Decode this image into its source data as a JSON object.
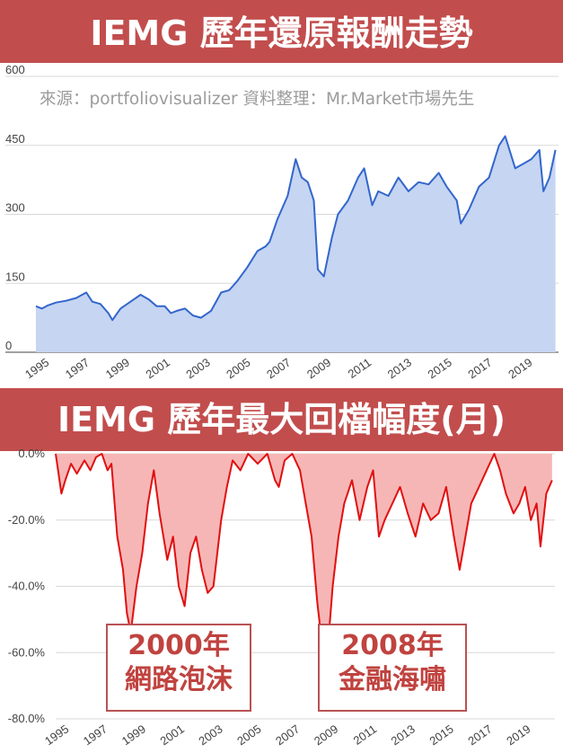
{
  "charts": {
    "returns": {
      "title": "IEMG 歷年還原報酬走勢",
      "source": "來源：portfoliovisualizer 資料整理：Mr.Market市場先生",
      "y_ticks": [
        "600",
        "450",
        "300",
        "150",
        "0"
      ],
      "x_ticks": [
        "1995",
        "1997",
        "1999",
        "2001",
        "2003",
        "2005",
        "2007",
        "2009",
        "2011",
        "2013",
        "2015",
        "2017",
        "2019"
      ]
    },
    "drawdown": {
      "title": "IEMG 歷年最大回檔幅度(月)",
      "y_ticks": [
        "0.0%",
        "-20.0%",
        "-40.0%",
        "-60.0%",
        "-80.0%"
      ],
      "x_ticks": [
        "1995",
        "1997",
        "1999",
        "2001",
        "2003",
        "2005",
        "2007",
        "2009",
        "2011",
        "2013",
        "2015",
        "2017",
        "2019"
      ],
      "annotations": [
        {
          "year": "2000年",
          "label": "網路泡沫"
        },
        {
          "year": "2008年",
          "label": "金融海嘯"
        }
      ]
    }
  },
  "chart_data": [
    {
      "type": "area",
      "title": "IEMG 歷年還原報酬走勢",
      "ylim": [
        0,
        600
      ],
      "line_color": "#3366cc",
      "fill_color": "#c5d5f2",
      "x": [
        1995.0,
        1995.3,
        1995.6,
        1996.0,
        1996.5,
        1997.0,
        1997.5,
        1997.8,
        1998.2,
        1998.6,
        1998.8,
        1999.2,
        1999.7,
        2000.2,
        2000.6,
        2001.0,
        2001.4,
        2001.7,
        2002.0,
        2002.4,
        2002.8,
        2003.2,
        2003.7,
        2004.2,
        2004.6,
        2005.0,
        2005.5,
        2006.0,
        2006.4,
        2006.6,
        2007.0,
        2007.5,
        2007.9,
        2008.2,
        2008.5,
        2008.8,
        2009.0,
        2009.3,
        2009.7,
        2010.0,
        2010.5,
        2011.0,
        2011.3,
        2011.7,
        2012.0,
        2012.5,
        2013.0,
        2013.5,
        2014.0,
        2014.5,
        2015.0,
        2015.4,
        2015.9,
        2016.1,
        2016.5,
        2017.0,
        2017.5,
        2018.0,
        2018.3,
        2018.8,
        2019.2,
        2019.6,
        2020.0,
        2020.2,
        2020.5,
        2020.8
      ],
      "y": [
        100,
        95,
        102,
        108,
        112,
        118,
        130,
        110,
        105,
        85,
        70,
        95,
        110,
        125,
        115,
        100,
        100,
        85,
        90,
        95,
        80,
        75,
        90,
        130,
        135,
        155,
        185,
        220,
        230,
        240,
        290,
        340,
        420,
        380,
        370,
        330,
        180,
        165,
        250,
        300,
        330,
        380,
        400,
        320,
        350,
        340,
        380,
        350,
        370,
        365,
        390,
        360,
        330,
        280,
        310,
        360,
        380,
        450,
        470,
        400,
        410,
        420,
        440,
        350,
        380,
        440
      ]
    },
    {
      "type": "area",
      "title": "IEMG 歷年最大回檔幅度(月)",
      "ylim": [
        -80,
        0
      ],
      "line_color": "#e01010",
      "fill_color": "#f7b6b6",
      "x": [
        1995.0,
        1995.3,
        1995.5,
        1995.8,
        1996.1,
        1996.5,
        1996.8,
        1997.1,
        1997.4,
        1997.7,
        1997.9,
        1998.2,
        1998.5,
        1998.7,
        1998.9,
        1999.2,
        1999.5,
        1999.8,
        2000.1,
        2000.4,
        2000.8,
        2001.1,
        2001.4,
        2001.7,
        2002.0,
        2002.3,
        2002.6,
        2002.9,
        2003.2,
        2003.6,
        2003.9,
        2004.2,
        2004.6,
        2005.0,
        2005.5,
        2006.0,
        2006.4,
        2006.6,
        2006.9,
        2007.3,
        2007.7,
        2008.0,
        2008.3,
        2008.6,
        2008.9,
        2009.1,
        2009.4,
        2009.7,
        2010.0,
        2010.4,
        2010.8,
        2011.2,
        2011.5,
        2011.8,
        2012.1,
        2012.5,
        2012.9,
        2013.3,
        2013.7,
        2014.1,
        2014.5,
        2014.9,
        2015.3,
        2015.7,
        2016.0,
        2016.3,
        2016.6,
        2017.0,
        2017.4,
        2017.8,
        2018.1,
        2018.4,
        2018.8,
        2019.1,
        2019.4,
        2019.7,
        2020.0,
        2020.2,
        2020.5,
        2020.8
      ],
      "y": [
        0,
        -12,
        -8,
        -3,
        -6,
        -2,
        -5,
        -1,
        0,
        -5,
        -3,
        -25,
        -35,
        -48,
        -54,
        -40,
        -30,
        -15,
        -5,
        -18,
        -32,
        -25,
        -40,
        -46,
        -30,
        -25,
        -35,
        -42,
        -40,
        -20,
        -10,
        -2,
        -5,
        0,
        -3,
        0,
        -8,
        -10,
        -2,
        0,
        -5,
        -15,
        -25,
        -45,
        -60,
        -62,
        -40,
        -25,
        -15,
        -8,
        -20,
        -10,
        -5,
        -25,
        -20,
        -15,
        -10,
        -18,
        -25,
        -15,
        -20,
        -18,
        -10,
        -25,
        -35,
        -25,
        -15,
        -10,
        -5,
        0,
        -5,
        -12,
        -18,
        -15,
        -10,
        -20,
        -15,
        -28,
        -12,
        -8
      ]
    }
  ]
}
